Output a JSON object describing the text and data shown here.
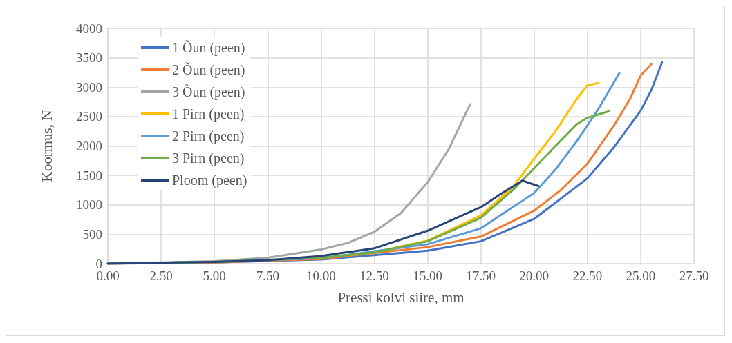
{
  "chart_data": {
    "type": "line",
    "xlabel": "Pressi kolvi siire, mm",
    "ylabel": "Koormus, N",
    "xlim": [
      0,
      27.5
    ],
    "xticks": [
      {
        "value": 0,
        "label": "0.00"
      },
      {
        "value": 2.5,
        "label": "2.50"
      },
      {
        "value": 5,
        "label": "5.00"
      },
      {
        "value": 7.5,
        "label": "7.50"
      },
      {
        "value": 10,
        "label": "10.00"
      },
      {
        "value": 12.5,
        "label": "12.50"
      },
      {
        "value": 15,
        "label": "15.00"
      },
      {
        "value": 17.5,
        "label": "17.50"
      },
      {
        "value": 20,
        "label": "20.00"
      },
      {
        "value": 22.5,
        "label": "22.50"
      },
      {
        "value": 25,
        "label": "25.00"
      },
      {
        "value": 27.5,
        "label": "27.50"
      }
    ],
    "ylim": [
      0,
      4000
    ],
    "yticks": [
      0,
      500,
      1000,
      1500,
      2000,
      2500,
      3000,
      3500,
      4000
    ],
    "grid": true,
    "legend": "top left",
    "marker": "none",
    "line_style": "solid",
    "series": [
      {
        "name": "1 Õun (peen)",
        "color": "#4472c4",
        "x": [
          0,
          5,
          10,
          15,
          17.5,
          20,
          22.5,
          23.75,
          25,
          25.5,
          26
        ],
        "values": [
          0,
          20,
          70,
          220,
          380,
          760,
          1450,
          1980,
          2600,
          2950,
          3420
        ]
      },
      {
        "name": "2 Õun (peen)",
        "color": "#ed7d31",
        "x": [
          0,
          5,
          10,
          15,
          17.5,
          20,
          21.25,
          22.5,
          23.75,
          24.5,
          25,
          25.5
        ],
        "values": [
          0,
          20,
          80,
          280,
          460,
          900,
          1250,
          1700,
          2350,
          2800,
          3200,
          3390
        ]
      },
      {
        "name": "3 Õun (peen)",
        "color": "#a5a5a5",
        "x": [
          0,
          5,
          7.5,
          10,
          11.25,
          12.5,
          13.75,
          15,
          16,
          17
        ],
        "values": [
          0,
          40,
          100,
          240,
          350,
          540,
          860,
          1380,
          1950,
          2710
        ]
      },
      {
        "name": "1 Pirn (peen)",
        "color": "#ffc000",
        "x": [
          10,
          12.5,
          15,
          17.5,
          19,
          20,
          21,
          22,
          22.5,
          23
        ],
        "values": [
          100,
          190,
          390,
          820,
          1300,
          1780,
          2250,
          2800,
          3030,
          3070
        ]
      },
      {
        "name": "2 Pirn (peen)",
        "color": "#5b9bd5",
        "x": [
          0,
          5,
          10,
          15,
          17.5,
          20,
          21,
          22,
          23,
          24
        ],
        "values": [
          0,
          30,
          90,
          330,
          600,
          1200,
          1600,
          2080,
          2620,
          3240
        ]
      },
      {
        "name": "3 Pirn (peen)",
        "color": "#70ad47",
        "x": [
          0,
          5,
          10,
          12.5,
          15,
          17.5,
          19,
          20,
          21,
          22,
          22.5,
          23.5
        ],
        "values": [
          0,
          30,
          100,
          190,
          380,
          780,
          1250,
          1620,
          2000,
          2370,
          2480,
          2590
        ]
      },
      {
        "name": "Ploom (peen)",
        "color": "#264478",
        "x": [
          0,
          5,
          7.5,
          10,
          12.5,
          15,
          17.5,
          18.5,
          19.45,
          20.2
        ],
        "values": [
          0,
          30,
          60,
          130,
          260,
          560,
          960,
          1200,
          1410,
          1320
        ]
      }
    ]
  }
}
